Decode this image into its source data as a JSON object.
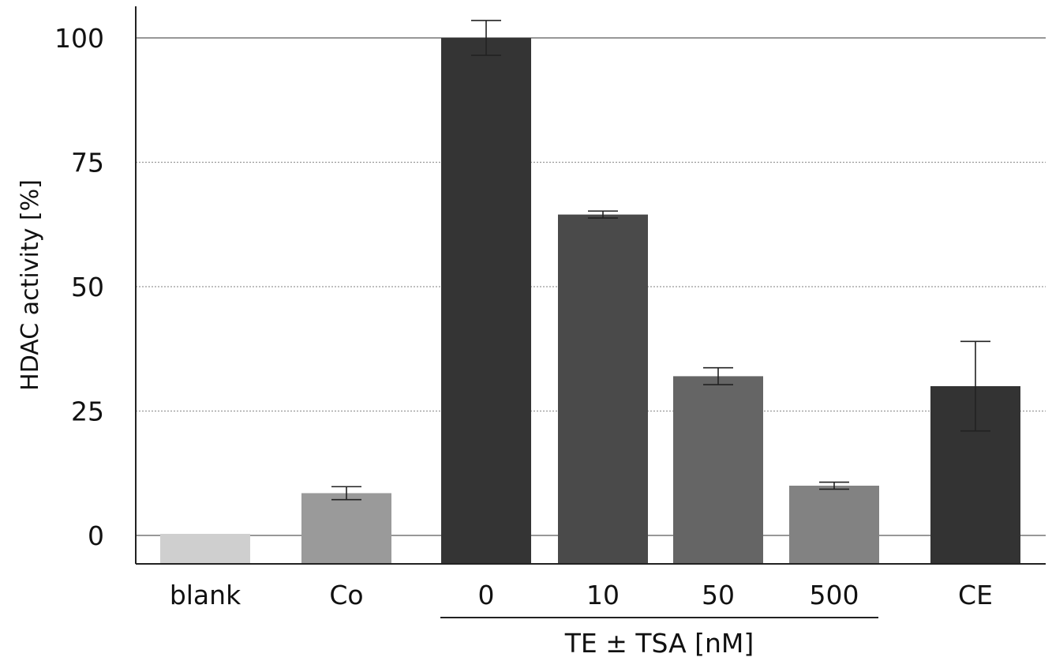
{
  "chart_data": {
    "type": "bar",
    "title": "",
    "xlabel": "",
    "ylabel": "HDAC activity [%]",
    "ylim": [
      -5,
      106
    ],
    "yticks": [
      0,
      25,
      50,
      75,
      100
    ],
    "categories": [
      "blank",
      "Co",
      "0",
      "10",
      "50",
      "500",
      "CE"
    ],
    "values": [
      0,
      8.5,
      100,
      64.5,
      32,
      10,
      30
    ],
    "errors": [
      0,
      1.3,
      3.5,
      0.7,
      1.7,
      0.7,
      9
    ],
    "colors": [
      "#cfcfcf",
      "#9a9a9a",
      "#343434",
      "#4a4a4a",
      "#656565",
      "#828282",
      "#333333"
    ],
    "group_label": {
      "text": "TE ± TSA [nM]",
      "categories": [
        "0",
        "10",
        "50",
        "500"
      ]
    },
    "grid": true
  }
}
